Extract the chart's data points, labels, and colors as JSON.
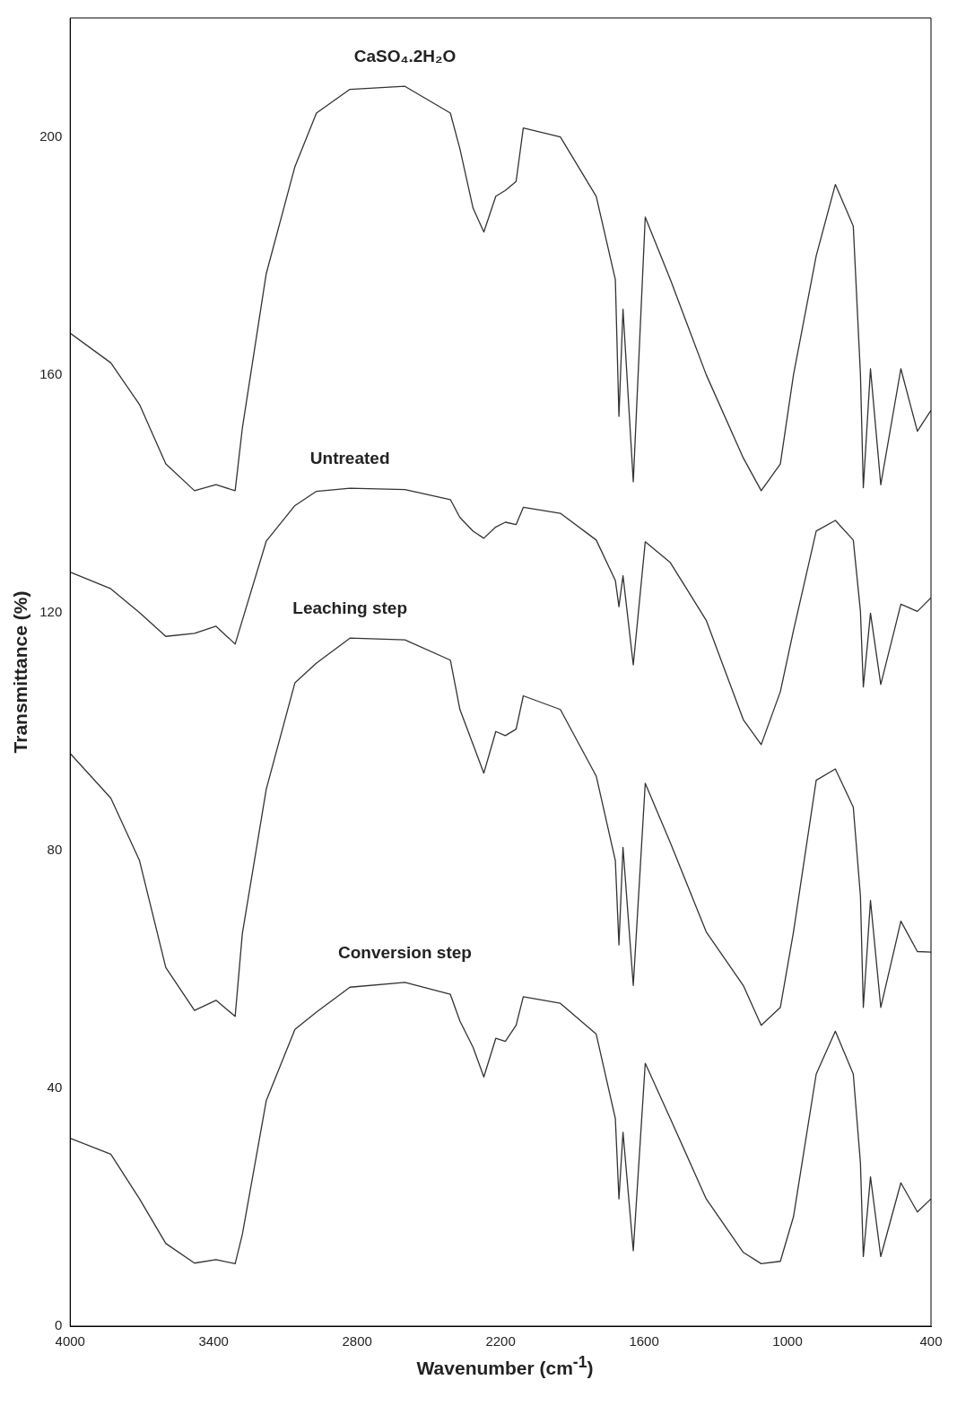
{
  "chart_data": {
    "type": "line",
    "xlabel": "Wavenumber (cm$^{-1}$)",
    "ylabel": "Transmittance (%)",
    "xlim": [
      4000,
      400
    ],
    "xticks": [
      4000,
      3400,
      2800,
      2200,
      1600,
      1000,
      400
    ],
    "ylim": [
      0,
      220
    ],
    "yticks": [
      0,
      40,
      80,
      120,
      160,
      200
    ],
    "grid": false,
    "legend": false,
    "x": [
      4000,
      3830,
      3710,
      3600,
      3480,
      3390,
      3310,
      3280,
      3180,
      3060,
      2970,
      2830,
      2600,
      2410,
      2370,
      2315,
      2270,
      2220,
      2180,
      2135,
      2105,
      1950,
      1800,
      1720,
      1705,
      1688,
      1645,
      1595,
      1490,
      1340,
      1185,
      1110,
      1030,
      975,
      880,
      800,
      725,
      695,
      683,
      653,
      610,
      526,
      457,
      400
    ],
    "series": [
      {
        "name": "CaSO₄.2H₂O",
        "color": "#333333",
        "values": [
          167,
          162,
          155,
          145,
          140.5,
          141.5,
          140.5,
          151,
          177,
          195,
          204,
          208,
          208.5,
          204,
          198,
          188,
          184,
          190,
          191,
          192.5,
          201.5,
          200,
          190,
          176,
          153,
          171,
          142,
          186.5,
          176,
          160,
          146,
          140.5,
          145,
          160,
          180,
          192,
          185,
          160,
          141,
          161,
          141.5,
          161,
          150.5,
          154
        ]
      },
      {
        "name": "Untreated",
        "color": "#333333",
        "values": [
          126.8,
          124,
          120,
          116,
          116.5,
          117.7,
          114.7,
          118.7,
          132,
          138,
          140.4,
          140.9,
          140.7,
          139,
          136,
          133.7,
          132.5,
          134.4,
          135.2,
          134.8,
          137.7,
          136.7,
          132.2,
          125.4,
          121,
          126.2,
          111.2,
          131.9,
          128.4,
          118.7,
          102,
          97.8,
          106.7,
          117,
          133.7,
          135.5,
          132.2,
          120.2,
          107.5,
          119.9,
          107.9,
          121.4,
          120.2,
          122.5
        ]
      },
      {
        "name": "Leaching step",
        "color": "#333333",
        "values": [
          96.3,
          88.8,
          78.3,
          60.3,
          53.1,
          54.8,
          52.1,
          66,
          90.3,
          108.2,
          111.5,
          115.7,
          115.4,
          112,
          103.7,
          97.8,
          93,
          100,
          99.3,
          100.4,
          106,
          103.7,
          92.5,
          78.3,
          64.1,
          80.5,
          57.3,
          91.3,
          81.3,
          66.3,
          57.3,
          50.6,
          53.6,
          66.3,
          91.8,
          93.7,
          87.3,
          72.3,
          53.6,
          71.6,
          53.6,
          68.1,
          63,
          62.9
        ]
      },
      {
        "name": "Conversion step",
        "color": "#333333",
        "values": [
          31.6,
          28.9,
          21.4,
          13.9,
          10.6,
          11.2,
          10.5,
          15.4,
          37.9,
          49.9,
          52.8,
          57,
          57.8,
          55.8,
          51.3,
          46.9,
          41.9,
          48.4,
          47.9,
          50.6,
          55.4,
          54.3,
          49.1,
          34.9,
          21.4,
          32.6,
          12.7,
          44.2,
          34.9,
          21.4,
          12.4,
          10.5,
          10.9,
          18.4,
          42.4,
          49.6,
          42.4,
          27.4,
          11.7,
          25.1,
          11.7,
          24.1,
          19.2,
          21.4
        ]
      }
    ]
  }
}
